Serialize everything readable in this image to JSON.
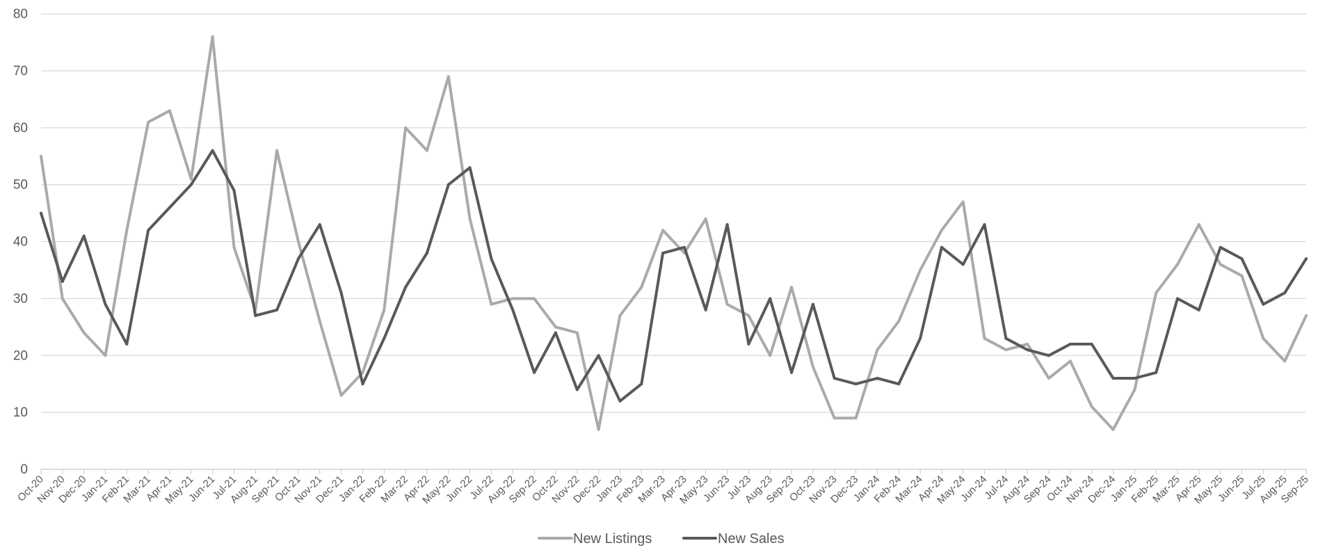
{
  "chart_data": {
    "type": "line",
    "title": "",
    "xlabel": "",
    "ylabel": "",
    "ylim": [
      0,
      80
    ],
    "yticks": [
      0,
      10,
      20,
      30,
      40,
      50,
      60,
      70,
      80
    ],
    "grid": true,
    "legend_position": "bottom",
    "categories": [
      "Oct-20",
      "Nov-20",
      "Dec-20",
      "Jan-21",
      "Feb-21",
      "Mar-21",
      "Apr-21",
      "May-21",
      "Jun-21",
      "Jul-21",
      "Aug-21",
      "Sep-21",
      "Oct-21",
      "Nov-21",
      "Dec-21",
      "Jan-22",
      "Feb-22",
      "Mar-22",
      "Apr-22",
      "May-22",
      "Jun-22",
      "Jul-22",
      "Aug-22",
      "Sep-22",
      "Oct-22",
      "Nov-22",
      "Dec-22",
      "Jan-23",
      "Feb-23",
      "Mar-23",
      "Apr-23",
      "May-23",
      "Jun-23",
      "Jul-23",
      "Aug-23",
      "Sep-23",
      "Oct-23",
      "Nov-23",
      "Dec-23",
      "Jan-24",
      "Feb-24",
      "Mar-24",
      "Apr-24",
      "May-24",
      "Jun-24",
      "Jul-24",
      "Aug-24",
      "Sep-24",
      "Oct-24",
      "Nov-24",
      "Dec-24",
      "Jan-25",
      "Feb-25",
      "Mar-25",
      "Apr-25",
      "May-25",
      "Jun-25",
      "Jul-25",
      "Aug-25",
      "Sep-25"
    ],
    "series": [
      {
        "name": "New Listings",
        "color": "#aaaaaa",
        "values": [
          55,
          30,
          24,
          20,
          42,
          61,
          63,
          51,
          76,
          39,
          28,
          56,
          40,
          26,
          13,
          17,
          28,
          60,
          56,
          69,
          44,
          29,
          30,
          30,
          25,
          24,
          7,
          27,
          32,
          42,
          38,
          44,
          29,
          27,
          20,
          32,
          18,
          9,
          9,
          21,
          26,
          35,
          42,
          47,
          23,
          21,
          22,
          16,
          19,
          11,
          7,
          14,
          31,
          36,
          43,
          36,
          34,
          23,
          19,
          27
        ]
      },
      {
        "name": "New Sales",
        "color": "#595959",
        "values": [
          45,
          33,
          41,
          29,
          22,
          42,
          46,
          50,
          56,
          49,
          27,
          28,
          37,
          43,
          31,
          15,
          23,
          32,
          38,
          50,
          53,
          37,
          28,
          17,
          24,
          14,
          20,
          12,
          15,
          38,
          39,
          28,
          43,
          22,
          30,
          17,
          29,
          16,
          15,
          16,
          15,
          23,
          39,
          36,
          43,
          23,
          21,
          20,
          22,
          22,
          16,
          16,
          17,
          30,
          28,
          39,
          37,
          29,
          31,
          37
        ]
      }
    ]
  }
}
